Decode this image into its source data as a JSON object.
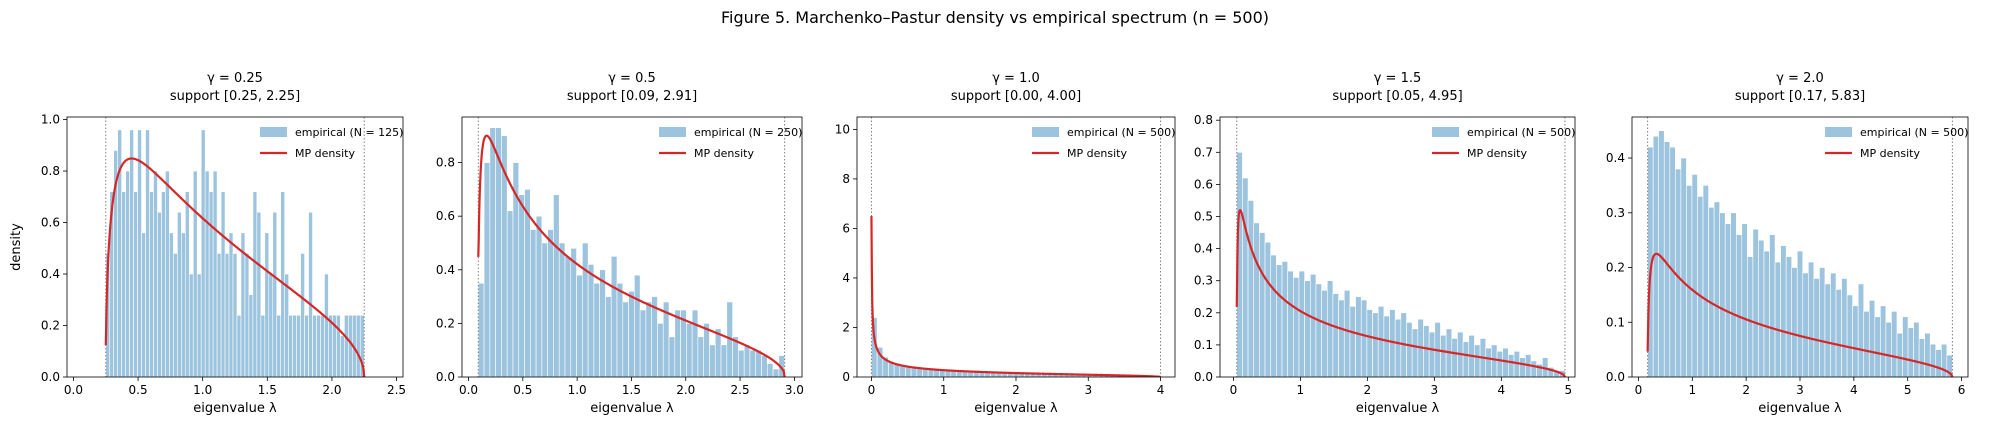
{
  "figure": {
    "suptitle": "Figure 5.  Marchenko–Pastur density vs empirical spectrum  (n = 500)",
    "colors": {
      "bar": "#9dc4de",
      "bar_edge": "#ffffff",
      "curve": "#d62728",
      "support_line": "#808080"
    }
  },
  "chart_data": [
    {
      "type": "bar",
      "title_line1": "γ = 0.25",
      "title_line2": "support [0.25, 2.25]",
      "xlabel": "eigenvalue λ",
      "ylabel": "density",
      "xlim": [
        -0.05,
        2.55
      ],
      "ylim": [
        0,
        1.01
      ],
      "xticks": [
        0.0,
        0.5,
        1.0,
        1.5,
        2.0,
        2.5
      ],
      "xtick_labels": [
        "0.0",
        "0.5",
        "1.0",
        "1.5",
        "2.0",
        "2.5"
      ],
      "yticks": [
        0.0,
        0.2,
        0.4,
        0.6,
        0.8,
        1.0
      ],
      "ytick_labels": [
        "0.0",
        "0.2",
        "0.4",
        "0.6",
        "0.8",
        "1.0"
      ],
      "gamma": 0.25,
      "support": [
        0.25,
        2.25
      ],
      "legend": {
        "empirical": "empirical (N = 125)",
        "density": "MP density"
      },
      "hist_range": [
        0.25,
        2.25
      ],
      "hist_values": [
        0.48,
        0.72,
        0.88,
        0.96,
        0.72,
        0.8,
        0.96,
        0.72,
        0.96,
        0.56,
        0.96,
        0.72,
        0.8,
        0.64,
        0.72,
        0.8,
        0.56,
        0.48,
        0.64,
        0.56,
        0.72,
        0.4,
        0.8,
        0.4,
        0.96,
        0.8,
        0.72,
        0.8,
        0.48,
        0.72,
        0.48,
        0.56,
        0.48,
        0.24,
        0.56,
        0.48,
        0.32,
        0.72,
        0.64,
        0.24,
        0.56,
        0.4,
        0.64,
        0.24,
        0.72,
        0.4,
        0.24,
        0.24,
        0.24,
        0.48,
        0.24,
        0.64,
        0.24,
        0.24,
        0.24,
        0.4,
        0.24,
        0.24,
        0.24,
        0.16,
        0.24,
        0.24,
        0.24,
        0.24,
        0.24
      ]
    },
    {
      "type": "bar",
      "title_line1": "γ = 0.5",
      "title_line2": "support [0.09, 2.91]",
      "xlabel": "eigenvalue λ",
      "ylabel": "",
      "xlim": [
        -0.06,
        3.07
      ],
      "ylim": [
        0,
        0.97
      ],
      "xticks": [
        0.0,
        0.5,
        1.0,
        1.5,
        2.0,
        2.5,
        3.0
      ],
      "xtick_labels": [
        "0.0",
        "0.5",
        "1.0",
        "1.5",
        "2.0",
        "2.5",
        "3.0"
      ],
      "yticks": [
        0.0,
        0.2,
        0.4,
        0.6,
        0.8
      ],
      "ytick_labels": [
        "0.0",
        "0.2",
        "0.4",
        "0.6",
        "0.8"
      ],
      "gamma": 0.5,
      "support": [
        0.09,
        2.91
      ],
      "legend": {
        "empirical": "empirical (N = 250)",
        "density": "MP density"
      },
      "hist_range": [
        0.09,
        2.91
      ],
      "hist_values": [
        0.35,
        0.8,
        0.93,
        0.93,
        0.9,
        0.62,
        0.8,
        0.68,
        0.7,
        0.55,
        0.6,
        0.5,
        0.55,
        0.68,
        0.5,
        0.45,
        0.48,
        0.38,
        0.5,
        0.42,
        0.35,
        0.4,
        0.3,
        0.45,
        0.35,
        0.28,
        0.32,
        0.38,
        0.25,
        0.28,
        0.3,
        0.2,
        0.28,
        0.15,
        0.25,
        0.25,
        0.2,
        0.25,
        0.15,
        0.2,
        0.12,
        0.18,
        0.12,
        0.28,
        0.15,
        0.1,
        0.12,
        0.1,
        0.1,
        0.08,
        0.05,
        0.03,
        0.08
      ]
    },
    {
      "type": "bar",
      "title_line1": "γ = 1.0",
      "title_line2": "support [0.00, 4.00]",
      "xlabel": "eigenvalue λ",
      "ylabel": "",
      "xlim": [
        -0.2,
        4.2
      ],
      "ylim": [
        0,
        10.5
      ],
      "xticks": [
        0,
        1,
        2,
        3,
        4
      ],
      "xtick_labels": [
        "0",
        "1",
        "2",
        "3",
        "4"
      ],
      "yticks": [
        0,
        2,
        4,
        6,
        8,
        10
      ],
      "ytick_labels": [
        "0",
        "2",
        "4",
        "6",
        "8",
        "10"
      ],
      "gamma": 1.0,
      "support": [
        0.0,
        4.0
      ],
      "legend": {
        "empirical": "empirical (N = 500)",
        "density": "MP density"
      },
      "hist_range": [
        0.0,
        4.0
      ],
      "hist_values": [
        2.4,
        1.2,
        0.8,
        0.62,
        0.55,
        0.5,
        0.45,
        0.42,
        0.4,
        0.38,
        0.36,
        0.34,
        0.32,
        0.3,
        0.29,
        0.28,
        0.27,
        0.26,
        0.25,
        0.24,
        0.24,
        0.23,
        0.22,
        0.21,
        0.21,
        0.2,
        0.19,
        0.19,
        0.18,
        0.17,
        0.17,
        0.16,
        0.15,
        0.15,
        0.14,
        0.13,
        0.13,
        0.12,
        0.11,
        0.11,
        0.1,
        0.09,
        0.09,
        0.08,
        0.07,
        0.06,
        0.06,
        0.05,
        0.04,
        0.03,
        0.02
      ]
    },
    {
      "type": "bar",
      "title_line1": "γ = 1.5",
      "title_line2": "support [0.05, 4.95]",
      "xlabel": "eigenvalue λ",
      "ylabel": "",
      "xlim": [
        -0.2,
        5.1
      ],
      "ylim": [
        0,
        0.81
      ],
      "xticks": [
        0,
        1,
        2,
        3,
        4,
        5
      ],
      "xtick_labels": [
        "0",
        "1",
        "2",
        "3",
        "4",
        "5"
      ],
      "yticks": [
        0.0,
        0.1,
        0.2,
        0.3,
        0.4,
        0.5,
        0.6,
        0.7,
        0.8
      ],
      "ytick_labels": [
        "0.0",
        "0.1",
        "0.2",
        "0.3",
        "0.4",
        "0.5",
        "0.6",
        "0.7",
        "0.8"
      ],
      "gamma": 1.5,
      "support": [
        0.05,
        4.95
      ],
      "legend": {
        "empirical": "empirical (N = 500)",
        "density": "MP density"
      },
      "hist_range": [
        0.05,
        4.95
      ],
      "hist_values": [
        0.7,
        0.62,
        0.55,
        0.48,
        0.45,
        0.42,
        0.38,
        0.35,
        0.36,
        0.33,
        0.31,
        0.33,
        0.3,
        0.32,
        0.29,
        0.27,
        0.3,
        0.26,
        0.24,
        0.27,
        0.22,
        0.25,
        0.24,
        0.21,
        0.2,
        0.22,
        0.19,
        0.21,
        0.18,
        0.2,
        0.17,
        0.15,
        0.18,
        0.16,
        0.14,
        0.17,
        0.13,
        0.15,
        0.12,
        0.14,
        0.11,
        0.13,
        0.1,
        0.12,
        0.09,
        0.1,
        0.08,
        0.09,
        0.07,
        0.08,
        0.06,
        0.07,
        0.05,
        0.04,
        0.06,
        0.03,
        0.02,
        0.02
      ]
    },
    {
      "type": "bar",
      "title_line1": "γ = 2.0",
      "title_line2": "support [0.17, 5.83]",
      "xlabel": "eigenvalue λ",
      "ylabel": "",
      "xlim": [
        -0.12,
        6.12
      ],
      "ylim": [
        0,
        0.475
      ],
      "xticks": [
        0,
        1,
        2,
        3,
        4,
        5,
        6
      ],
      "xtick_labels": [
        "0",
        "1",
        "2",
        "3",
        "4",
        "5",
        "6"
      ],
      "yticks": [
        0.0,
        0.1,
        0.2,
        0.3,
        0.4
      ],
      "ytick_labels": [
        "0.0",
        "0.1",
        "0.2",
        "0.3",
        "0.4"
      ],
      "gamma": 2.0,
      "support": [
        0.17,
        5.83
      ],
      "legend": {
        "empirical": "empirical (N = 500)",
        "density": "MP density"
      },
      "hist_range": [
        0.17,
        5.83
      ],
      "hist_values": [
        0.42,
        0.44,
        0.45,
        0.43,
        0.42,
        0.38,
        0.4,
        0.35,
        0.37,
        0.33,
        0.35,
        0.31,
        0.32,
        0.3,
        0.28,
        0.3,
        0.26,
        0.28,
        0.22,
        0.27,
        0.25,
        0.23,
        0.26,
        0.21,
        0.24,
        0.22,
        0.2,
        0.23,
        0.19,
        0.21,
        0.18,
        0.2,
        0.17,
        0.19,
        0.16,
        0.18,
        0.15,
        0.13,
        0.17,
        0.12,
        0.14,
        0.11,
        0.13,
        0.1,
        0.12,
        0.08,
        0.11,
        0.09,
        0.1,
        0.07,
        0.08,
        0.06,
        0.05,
        0.06,
        0.04
      ]
    }
  ]
}
